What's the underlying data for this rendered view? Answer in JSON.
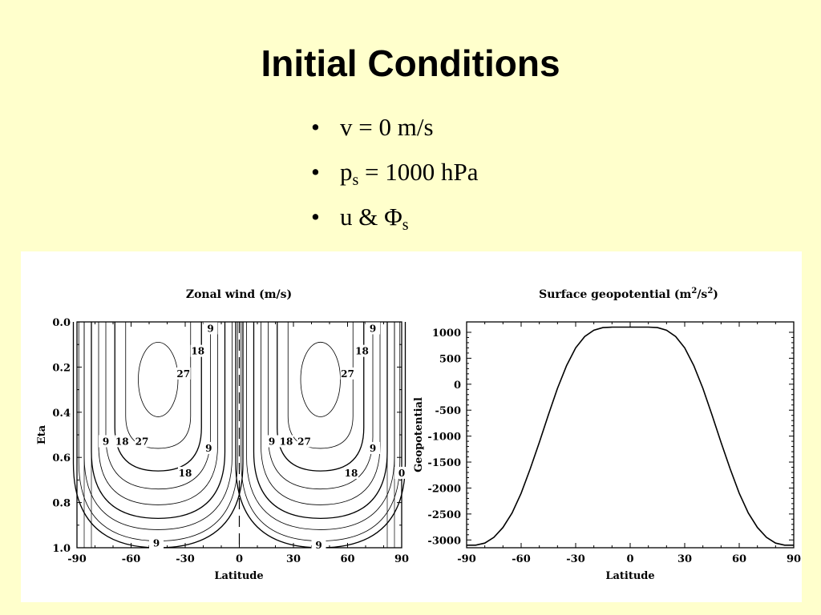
{
  "slide": {
    "title": "Initial Conditions",
    "bullets": [
      {
        "bullet": "•",
        "main": "v = 0 m/s",
        "sub": "",
        "rest": ""
      },
      {
        "bullet": "•",
        "main": "p",
        "sub": "s",
        "rest": " = 1000 hPa"
      },
      {
        "bullet": "•",
        "main": "u & Φ",
        "sub": "s",
        "rest": ""
      }
    ]
  },
  "colors": {
    "background": "#ffffcc",
    "panel": "#ffffff",
    "ink": "#000000"
  },
  "chart_data": [
    {
      "type": "contour",
      "title": "Zonal wind (m/s)",
      "xlabel": "Latitude",
      "ylabel": "Eta",
      "xlim": [
        -90,
        90
      ],
      "ylim": [
        1.0,
        0.0
      ],
      "x_ticks": [
        "-90",
        "-60",
        "-30",
        "0",
        "30",
        "60",
        "90"
      ],
      "y_ticks": [
        "0.0",
        "0.2",
        "0.4",
        "0.6",
        "0.8",
        "1.0"
      ],
      "contour_interval": 3,
      "jet_centers": [
        {
          "lat": -45,
          "eta": 0.25
        },
        {
          "lat": 45,
          "eta": 0.25
        }
      ],
      "contour_labels": [
        {
          "text": "9",
          "lat": -16,
          "eta": 0.03
        },
        {
          "text": "18",
          "lat": -23,
          "eta": 0.13
        },
        {
          "text": "27",
          "lat": -31,
          "eta": 0.23
        },
        {
          "text": "9",
          "lat": -74,
          "eta": 0.53
        },
        {
          "text": "18",
          "lat": -65,
          "eta": 0.53
        },
        {
          "text": "27",
          "lat": -54,
          "eta": 0.53
        },
        {
          "text": "9",
          "lat": -17,
          "eta": 0.56
        },
        {
          "text": "18",
          "lat": -30,
          "eta": 0.67
        },
        {
          "text": "9",
          "lat": -46,
          "eta": 0.98
        },
        {
          "text": "9",
          "lat": 74,
          "eta": 0.03
        },
        {
          "text": "18",
          "lat": 68,
          "eta": 0.13
        },
        {
          "text": "27",
          "lat": 60,
          "eta": 0.23
        },
        {
          "text": "9",
          "lat": 18,
          "eta": 0.53
        },
        {
          "text": "18",
          "lat": 26,
          "eta": 0.53
        },
        {
          "text": "27",
          "lat": 36,
          "eta": 0.53
        },
        {
          "text": "9",
          "lat": 74,
          "eta": 0.56
        },
        {
          "text": "18",
          "lat": 62,
          "eta": 0.67
        },
        {
          "text": "0",
          "lat": 90,
          "eta": 0.67
        },
        {
          "text": "9",
          "lat": 44,
          "eta": 0.99
        }
      ]
    },
    {
      "type": "line",
      "title_main": "Surface geopotential (m",
      "title_sup1": "2",
      "title_mid": "/s",
      "title_sup2": "2",
      "title_end": ")",
      "xlabel": "Latitude",
      "ylabel": "Geopotential",
      "xlim": [
        -90,
        90
      ],
      "ylim": [
        -3150,
        1200
      ],
      "x_ticks": [
        "-90",
        "-60",
        "-30",
        "0",
        "30",
        "60",
        "90"
      ],
      "y_ticks": [
        "1000",
        "500",
        "0",
        "-500",
        "-1000",
        "-1500",
        "-2000",
        "-2500",
        "-3000"
      ],
      "y_tick_values": [
        1000,
        500,
        0,
        -500,
        -1000,
        -1500,
        -2000,
        -2500,
        -3000
      ],
      "series": [
        {
          "x": [
            -90,
            -85,
            -80,
            -75,
            -70,
            -65,
            -60,
            -55,
            -50,
            -45,
            -40,
            -35,
            -30,
            -25,
            -20,
            -15,
            -10,
            -5,
            0,
            5,
            10,
            15,
            20,
            25,
            30,
            35,
            40,
            45,
            50,
            55,
            60,
            65,
            70,
            75,
            80,
            85,
            90
          ],
          "y": [
            -3100,
            -3100,
            -3060,
            -2950,
            -2760,
            -2480,
            -2100,
            -1630,
            -1120,
            -590,
            -80,
            360,
            700,
            920,
            1040,
            1090,
            1100,
            1100,
            1100,
            1100,
            1100,
            1090,
            1040,
            920,
            700,
            360,
            -80,
            -590,
            -1120,
            -1630,
            -2100,
            -2480,
            -2760,
            -2950,
            -3060,
            -3100,
            -3100
          ]
        }
      ]
    }
  ]
}
